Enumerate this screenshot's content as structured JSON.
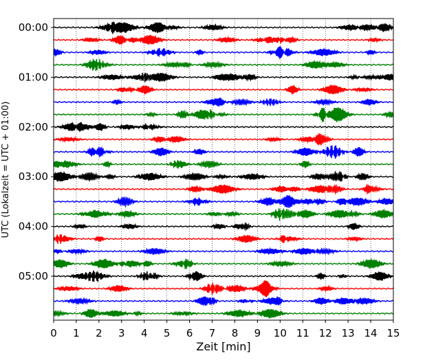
{
  "chart_data": {
    "type": "line",
    "title": "",
    "xlabel": "Zeit  [min]",
    "ylabel": "UTC (Lokalzeit = UTC + 01:00)",
    "xlim": [
      0,
      15
    ],
    "x_ticks": [
      "0",
      "1",
      "2",
      "3",
      "4",
      "5",
      "6",
      "7",
      "8",
      "9",
      "10",
      "11",
      "12",
      "13",
      "14",
      "15"
    ],
    "y_ticks": [
      "00:00",
      "01:00",
      "02:00",
      "03:00",
      "04:00",
      "05:00"
    ],
    "traces_per_hour": 4,
    "trace_count": 24,
    "trace_minutes": 15,
    "grid": "vertical-dotted",
    "colors": [
      "#000000",
      "#ff0000",
      "#0000ff",
      "#008000"
    ],
    "description_note": ""
  }
}
